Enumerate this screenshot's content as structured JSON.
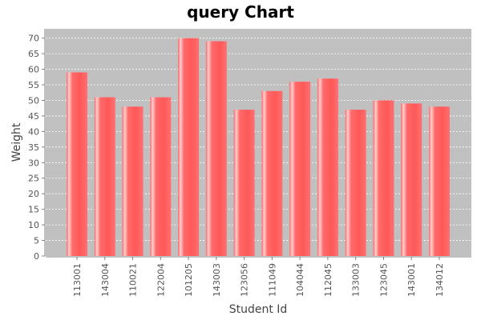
{
  "chart_data": {
    "type": "bar",
    "title": "query Chart",
    "xlabel": "Student Id",
    "ylabel": "Weight",
    "categories": [
      "113001",
      "143004",
      "110021",
      "122004",
      "101205",
      "143003",
      "123056",
      "111049",
      "104044",
      "112045",
      "133003",
      "123045",
      "143001",
      "134012"
    ],
    "values": [
      59,
      51,
      48,
      51,
      70,
      69,
      47,
      53,
      56,
      57,
      47,
      50,
      49,
      48
    ],
    "ylim": [
      0,
      73
    ],
    "yticks": [
      0,
      5,
      10,
      15,
      20,
      25,
      30,
      35,
      40,
      45,
      50,
      55,
      60,
      65,
      70
    ],
    "grid": true,
    "legend": "none",
    "colors": {
      "bar": "#ff5555",
      "bar_highlight": "#ffbbbb",
      "plot_background": "#c0c0c0",
      "gridline": "#ffffff"
    }
  }
}
